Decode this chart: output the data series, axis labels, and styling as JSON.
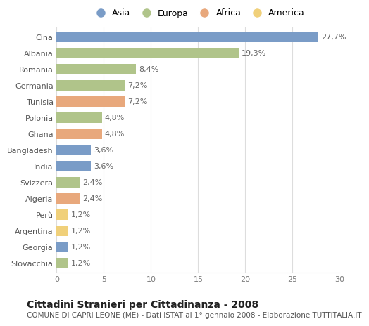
{
  "countries": [
    "Cina",
    "Albania",
    "Romania",
    "Germania",
    "Tunisia",
    "Polonia",
    "Ghana",
    "Bangladesh",
    "India",
    "Svizzera",
    "Algeria",
    "Perù",
    "Argentina",
    "Georgia",
    "Slovacchia"
  ],
  "values": [
    27.7,
    19.3,
    8.4,
    7.2,
    7.2,
    4.8,
    4.8,
    3.6,
    3.6,
    2.4,
    2.4,
    1.2,
    1.2,
    1.2,
    1.2
  ],
  "labels": [
    "27,7%",
    "19,3%",
    "8,4%",
    "7,2%",
    "7,2%",
    "4,8%",
    "4,8%",
    "3,6%",
    "3,6%",
    "2,4%",
    "2,4%",
    "1,2%",
    "1,2%",
    "1,2%",
    "1,2%"
  ],
  "continents": [
    "Asia",
    "Europa",
    "Europa",
    "Europa",
    "Africa",
    "Europa",
    "Africa",
    "Asia",
    "Asia",
    "Europa",
    "Africa",
    "America",
    "America",
    "Asia",
    "Europa"
  ],
  "colors": {
    "Asia": "#7a9cc7",
    "Europa": "#b0c48a",
    "Africa": "#e8a87c",
    "America": "#f0d07a"
  },
  "legend_order": [
    "Asia",
    "Europa",
    "Africa",
    "America"
  ],
  "xlim": [
    0,
    30
  ],
  "xticks": [
    0,
    5,
    10,
    15,
    20,
    25,
    30
  ],
  "title": "Cittadini Stranieri per Cittadinanza - 2008",
  "subtitle": "COMUNE DI CAPRI LEONE (ME) - Dati ISTAT al 1° gennaio 2008 - Elaborazione TUTTITALIA.IT",
  "bg_color": "#ffffff",
  "grid_color": "#dddddd",
  "bar_height": 0.65,
  "title_fontsize": 10,
  "subtitle_fontsize": 7.5,
  "tick_fontsize": 8,
  "label_fontsize": 8
}
